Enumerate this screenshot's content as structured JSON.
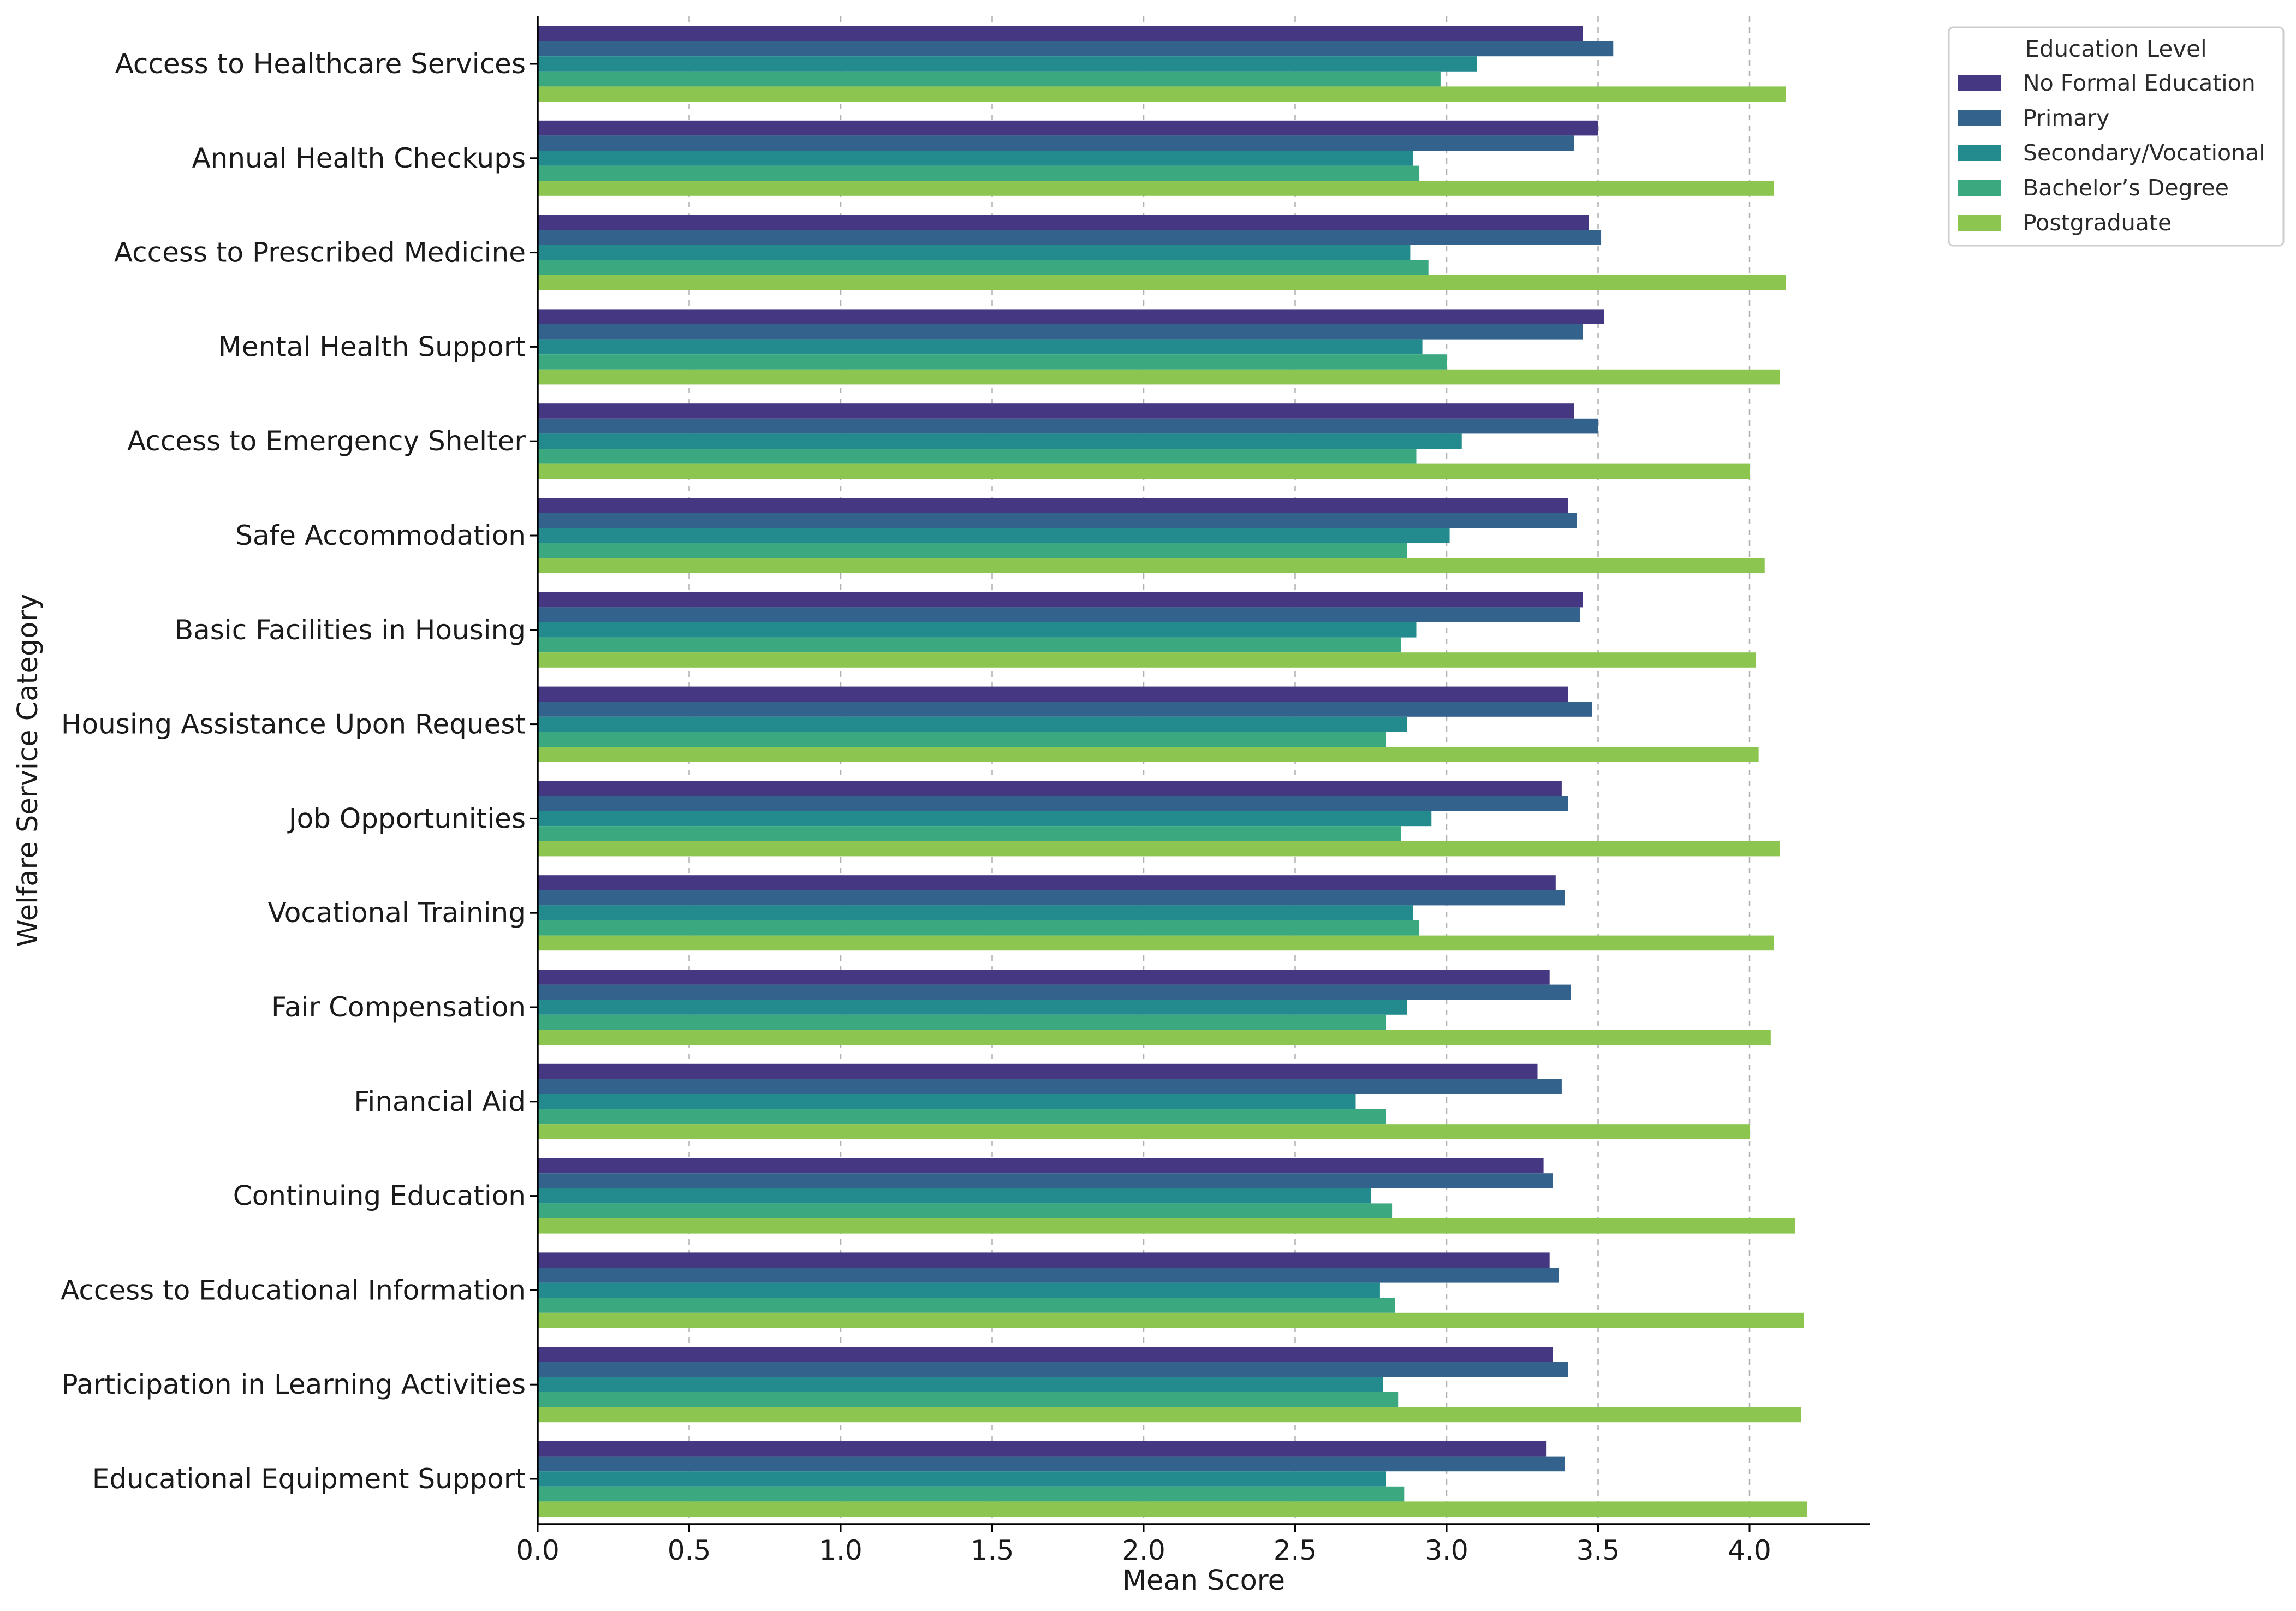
{
  "chart_data": {
    "type": "bar",
    "orientation": "horizontal",
    "title": "",
    "xlabel": "Mean Score",
    "ylabel": "Welfare Service Category",
    "xlim": [
      0,
      4.4
    ],
    "xticks": [
      "0.0",
      "0.5",
      "1.0",
      "1.5",
      "2.0",
      "2.5",
      "3.0",
      "3.5",
      "4.0"
    ],
    "grid": "x dashed",
    "legend_title": "Education Level",
    "legend_position": "upper-right outside",
    "categories": [
      "Access to Healthcare Services",
      "Annual Health Checkups",
      "Access to Prescribed Medicine",
      "Mental Health Support",
      "Access to Emergency Shelter",
      "Safe Accommodation",
      "Basic Facilities in Housing",
      "Housing Assistance Upon Request",
      "Job Opportunities",
      "Vocational Training",
      "Fair Compensation",
      "Financial Aid",
      "Continuing Education",
      "Access to Educational Information",
      "Participation in Learning Activities",
      "Educational Equipment Support"
    ],
    "series": [
      {
        "name": "No Formal Education",
        "color": "#453781",
        "values": [
          3.45,
          3.5,
          3.47,
          3.52,
          3.42,
          3.4,
          3.45,
          3.4,
          3.38,
          3.36,
          3.34,
          3.3,
          3.32,
          3.34,
          3.35,
          3.33
        ]
      },
      {
        "name": "Primary",
        "color": "#33638d",
        "values": [
          3.55,
          3.42,
          3.51,
          3.45,
          3.5,
          3.43,
          3.44,
          3.48,
          3.4,
          3.39,
          3.41,
          3.38,
          3.35,
          3.37,
          3.4,
          3.39
        ]
      },
      {
        "name": "Secondary/Vocational",
        "color": "#238a8d",
        "values": [
          3.1,
          2.89,
          2.88,
          2.92,
          3.05,
          3.01,
          2.9,
          2.87,
          2.95,
          2.89,
          2.87,
          2.7,
          2.75,
          2.78,
          2.79,
          2.8
        ]
      },
      {
        "name": "Bachelor’s Degree",
        "color": "#3ba87f",
        "values": [
          2.98,
          2.91,
          2.94,
          3.0,
          2.9,
          2.87,
          2.85,
          2.8,
          2.85,
          2.91,
          2.8,
          2.8,
          2.82,
          2.83,
          2.84,
          2.86
        ]
      },
      {
        "name": "Postgraduate",
        "color": "#8cc650",
        "values": [
          4.12,
          4.08,
          4.12,
          4.1,
          4.0,
          4.05,
          4.02,
          4.03,
          4.1,
          4.08,
          4.07,
          4.0,
          4.15,
          4.18,
          4.17,
          4.19
        ]
      }
    ]
  }
}
